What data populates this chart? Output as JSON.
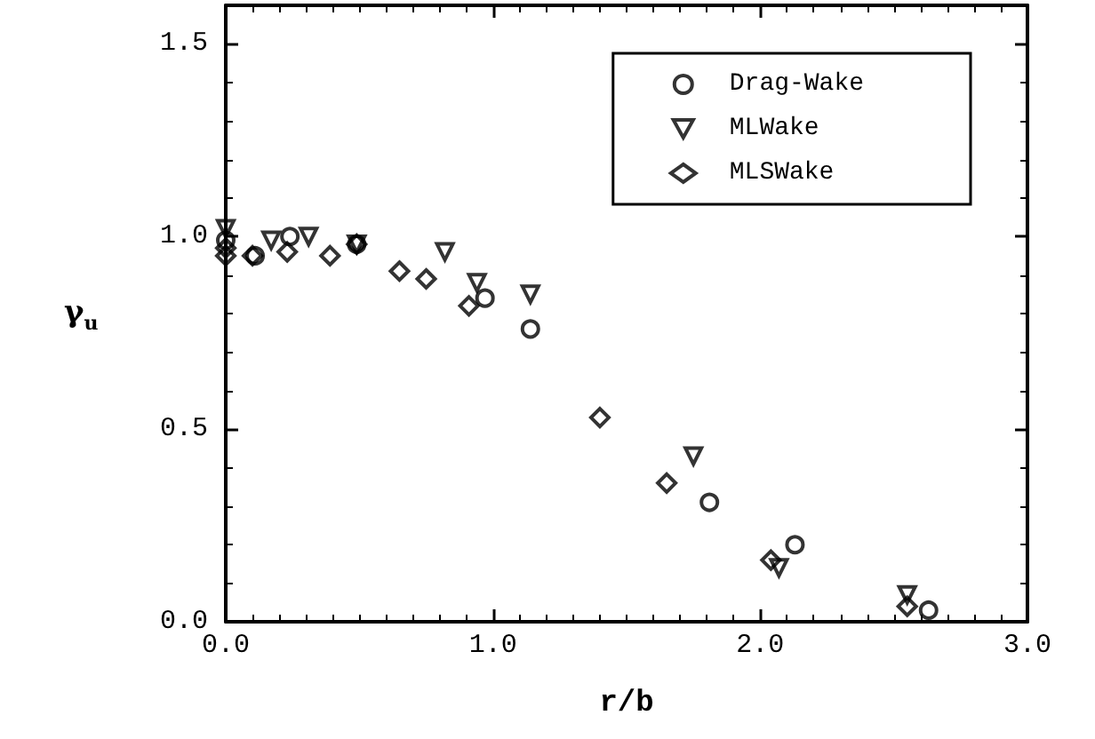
{
  "chart_data": {
    "type": "scatter",
    "xlabel": "r/b",
    "ylabel": "γ$_{u}$",
    "xlim": [
      0,
      3
    ],
    "ylim": [
      0,
      1.6
    ],
    "xticks": [
      {
        "value": 0,
        "label": "0.0"
      },
      {
        "value": 1,
        "label": "1.0"
      },
      {
        "value": 2,
        "label": "2.0"
      },
      {
        "value": 3,
        "label": "3.0"
      }
    ],
    "yticks": [
      {
        "value": 0,
        "label": "0.0"
      },
      {
        "value": 0.5,
        "label": "0.5"
      },
      {
        "value": 1,
        "label": "1.0"
      },
      {
        "value": 1.5,
        "label": "1.5"
      }
    ],
    "legend": "top right",
    "grid": false,
    "series": [
      {
        "name": "Drag-Wake",
        "color": "#000000",
        "marker": "circle",
        "x": [
          0,
          0.11,
          0.24,
          0.49,
          0.97,
          1.14,
          1.81,
          2.13,
          2.63
        ],
        "values": [
          0.99,
          0.95,
          1.0,
          0.98,
          0.84,
          0.76,
          0.31,
          0.2,
          0.03
        ]
      },
      {
        "name": "MLWake",
        "color": "#000000",
        "marker": "triangle",
        "x": [
          0,
          0.17,
          0.31,
          0.49,
          0.82,
          0.94,
          1.14,
          1.75,
          2.07,
          2.55
        ],
        "values": [
          1.02,
          0.99,
          1.0,
          0.98,
          0.96,
          0.88,
          0.85,
          0.43,
          0.14,
          0.07
        ]
      },
      {
        "name": "MLSWake",
        "color": "#000000",
        "marker": "diamond",
        "x": [
          0,
          0,
          0.1,
          0.23,
          0.39,
          0.49,
          0.65,
          0.75,
          0.91,
          1.4,
          1.65,
          2.04,
          2.55
        ],
        "values": [
          0.97,
          0.95,
          0.95,
          0.96,
          0.95,
          0.98,
          0.91,
          0.89,
          0.82,
          0.53,
          0.36,
          0.16,
          0.04
        ]
      }
    ]
  }
}
